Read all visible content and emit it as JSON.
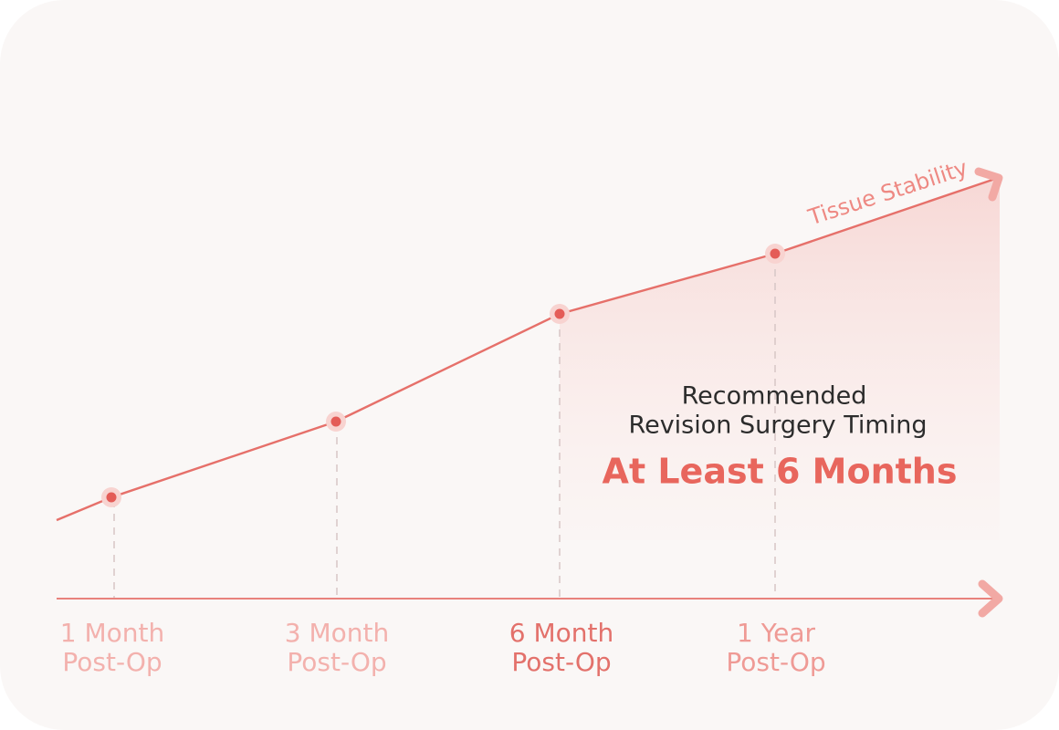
{
  "axis_label": "Tissue Stability",
  "milestones": [
    {
      "line1": "1 Month",
      "line2": "Post-Op"
    },
    {
      "line1": "3 Month",
      "line2": "Post-Op"
    },
    {
      "line1": "6 Month",
      "line2": "Post-Op"
    },
    {
      "line1": "1 Year",
      "line2": "Post-Op"
    }
  ],
  "callout": {
    "line1": "Recommended",
    "line2": "Revision Surgery Timing",
    "highlight": "At Least 6 Months"
  }
}
